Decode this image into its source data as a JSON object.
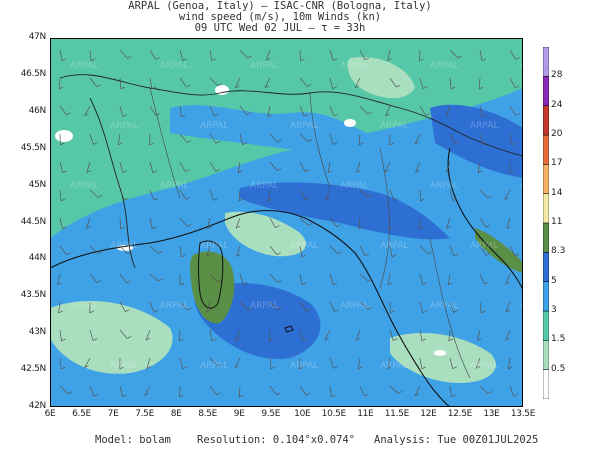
{
  "header": {
    "line1": "ARPAL (Genoa, Italy)  —  ISAC-CNR (Bologna, Italy)",
    "line2": "wind speed (m/s), 10m Winds (kn)",
    "line3": "09 UTC Wed 02 JUL  —  τ = 33h"
  },
  "map": {
    "lat_ticks": [
      "47N",
      "46.5N",
      "46N",
      "45.5N",
      "45N",
      "44.5N",
      "44N",
      "43.5N",
      "43N",
      "42.5N",
      "42N"
    ],
    "lon_ticks": [
      "6E",
      "6.5E",
      "7E",
      "7.5E",
      "8E",
      "8.5E",
      "9E",
      "9.5E",
      "10E",
      "10.5E",
      "11E",
      "11.5E",
      "12E",
      "12.5E",
      "13E",
      "13.5E"
    ],
    "lat_range": [
      42,
      47
    ],
    "lon_range": [
      6,
      13.5
    ],
    "watermark": "ARPAL"
  },
  "colorbar": {
    "levels": [
      "0.5",
      "1.5",
      "3",
      "5",
      "8.3",
      "11",
      "14",
      "17",
      "20",
      "24",
      "28"
    ],
    "colors": [
      "#ffffff",
      "#a9dfbf",
      "#56c8a8",
      "#3fa2e6",
      "#2e6fd3",
      "#5a8f46",
      "#f3e8a6",
      "#f5b36a",
      "#e46c3c",
      "#c23a2e",
      "#8a2bb8",
      "#b39be8"
    ]
  },
  "footer": {
    "model": "Model: bolam",
    "resolution": "Resolution: 0.104°x0.074°",
    "analysis": "Analysis: Tue 00Z01JUL2025"
  }
}
